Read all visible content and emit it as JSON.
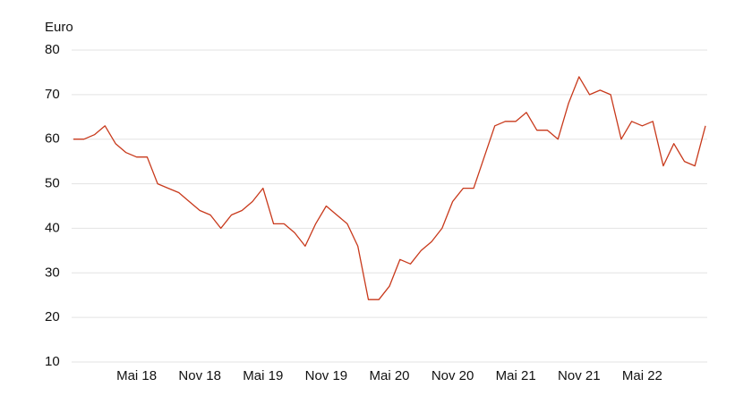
{
  "chart_data": {
    "type": "line",
    "y_label": "Euro",
    "x": [
      "2017-11",
      "2017-12",
      "2018-01",
      "2018-02",
      "2018-03",
      "2018-04",
      "2018-05",
      "2018-06",
      "2018-07",
      "2018-08",
      "2018-09",
      "2018-10",
      "2018-11",
      "2018-12",
      "2019-01",
      "2019-02",
      "2019-03",
      "2019-04",
      "2019-05",
      "2019-06",
      "2019-07",
      "2019-08",
      "2019-09",
      "2019-10",
      "2019-11",
      "2019-12",
      "2020-01",
      "2020-02",
      "2020-03",
      "2020-04",
      "2020-05",
      "2020-06",
      "2020-07",
      "2020-08",
      "2020-09",
      "2020-10",
      "2020-11",
      "2020-12",
      "2021-01",
      "2021-02",
      "2021-03",
      "2021-04",
      "2021-05",
      "2021-06",
      "2021-07",
      "2021-08",
      "2021-09",
      "2021-10",
      "2021-11",
      "2021-12",
      "2022-01",
      "2022-02",
      "2022-03",
      "2022-04",
      "2022-05",
      "2022-06",
      "2022-07",
      "2022-08",
      "2022-09",
      "2022-10",
      "2022-11"
    ],
    "series": [
      {
        "color": "#c8391b",
        "values": [
          60,
          60,
          61,
          63,
          59,
          57,
          56,
          56,
          50,
          49,
          48,
          46,
          44,
          43,
          40,
          43,
          44,
          46,
          49,
          41,
          41,
          39,
          36,
          41,
          45,
          43,
          41,
          36,
          24,
          24,
          27,
          33,
          32,
          35,
          37,
          40,
          46,
          49,
          49,
          56,
          63,
          64,
          64,
          66,
          62,
          62,
          60,
          68,
          74,
          70,
          71,
          70,
          60,
          64,
          63,
          64,
          54,
          59,
          55,
          54,
          63
        ]
      }
    ],
    "xlim": [
      "2017-11",
      "2022-11"
    ],
    "xticks": [
      {
        "value": "2018-05",
        "label": "Mai 18"
      },
      {
        "value": "2018-11",
        "label": "Nov 18"
      },
      {
        "value": "2019-05",
        "label": "Mai 19"
      },
      {
        "value": "2019-11",
        "label": "Nov 19"
      },
      {
        "value": "2020-05",
        "label": "Mai 20"
      },
      {
        "value": "2020-11",
        "label": "Nov 20"
      },
      {
        "value": "2021-05",
        "label": "Mai 21"
      },
      {
        "value": "2021-11",
        "label": "Nov 21"
      },
      {
        "value": "2022-05",
        "label": "Mai 22"
      }
    ],
    "ylim": [
      10,
      80
    ],
    "yticks": [
      10,
      20,
      30,
      40,
      50,
      60,
      70,
      80
    ],
    "grid": true
  }
}
